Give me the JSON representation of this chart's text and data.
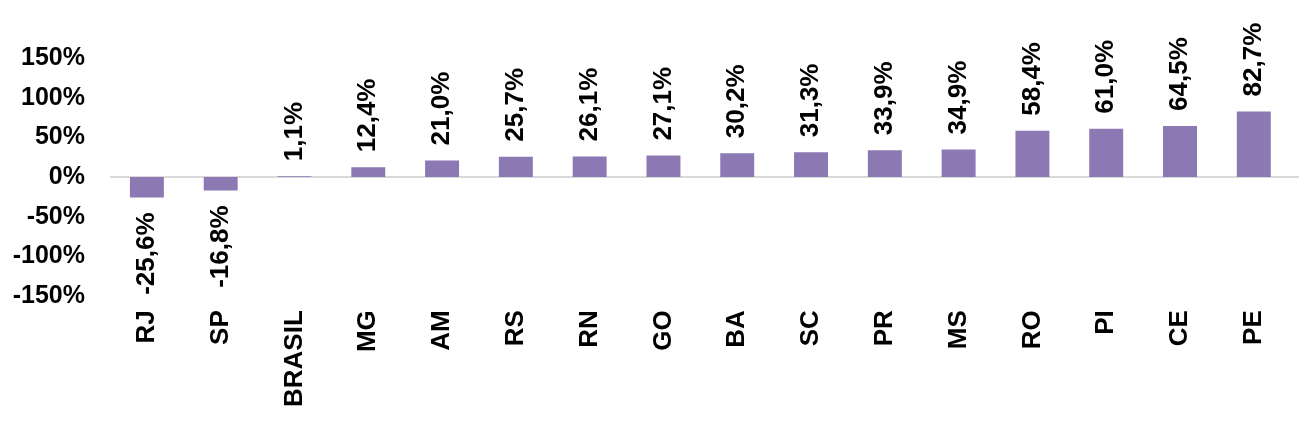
{
  "chart_data": {
    "type": "bar",
    "categories": [
      "RJ",
      "SP",
      "BRASIL",
      "MG",
      "AM",
      "RS",
      "RN",
      "GO",
      "BA",
      "SC",
      "PR",
      "MS",
      "RO",
      "PI",
      "CE",
      "PE"
    ],
    "values": [
      -25.6,
      -16.8,
      1.1,
      12.4,
      21.0,
      25.7,
      26.1,
      27.1,
      30.2,
      31.3,
      33.9,
      34.9,
      58.4,
      61.0,
      64.5,
      82.7
    ],
    "value_labels": [
      "-25,6%",
      "-16,8%",
      "1,1%",
      "12,4%",
      "21,0%",
      "25,7%",
      "26,1%",
      "27,1%",
      "30,2%",
      "31,3%",
      "33,9%",
      "34,9%",
      "58,4%",
      "61,0%",
      "64,5%",
      "82,7%"
    ],
    "color": "#8c78b2",
    "ylim": [
      -150,
      150
    ],
    "yticks": [
      {
        "value": -150,
        "label": "-150%"
      },
      {
        "value": -100,
        "label": "-100%"
      },
      {
        "value": -50,
        "label": "-50%"
      },
      {
        "value": 0,
        "label": "0%"
      },
      {
        "value": 50,
        "label": "50%"
      },
      {
        "value": 100,
        "label": "100%"
      },
      {
        "value": 150,
        "label": "150%"
      }
    ]
  }
}
